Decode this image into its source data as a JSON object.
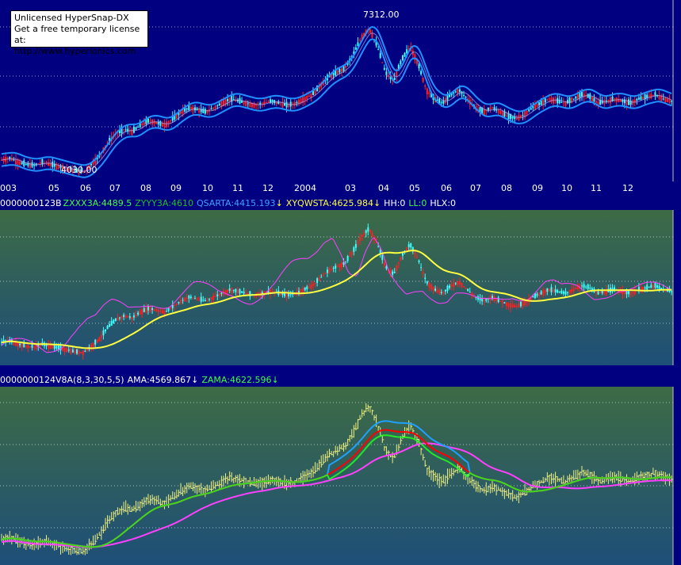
{
  "watermark": {
    "line1": "Unlicensed HyperSnap-DX",
    "line2": "Get a free temporary license at:",
    "line3": "http://www.hyperionics.com"
  },
  "top_panel": {
    "high_label": "7312.00",
    "low_label": "4030.00",
    "time_axis": [
      "003",
      "05",
      "06",
      "07",
      "08",
      "09",
      "10",
      "11",
      "12",
      "2004",
      "03",
      "04",
      "05",
      "06",
      "07",
      "08",
      "09",
      "10",
      "11",
      "12"
    ]
  },
  "mid_panel": {
    "header": {
      "id": "0000000123B",
      "zxxx": "ZXXX3A:4489.5",
      "zyyy": "ZYYY3A:4610",
      "qsarta": "QSARTA:4415.193",
      "xyqwsta": "XYQWSTA:4625.984",
      "hh": "HH:0",
      "ll": "LL:0",
      "hlx": "HLX:0"
    }
  },
  "bot_panel": {
    "header": {
      "id": "0000000124V8A(8,3,30,5,5)",
      "ama": "AMA:4569.867",
      "zama": "ZAMA:4622.596"
    }
  },
  "colors": {
    "window_bg": "#000080",
    "up_candle": "#ff2020",
    "down_candle": "#40ffff",
    "band": "#2090ff",
    "yellow_line": "#ffff40",
    "magenta_line": "#ff40ff",
    "red_line": "#ff0000",
    "green_line": "#20ff20",
    "blue_line": "#20a0ff"
  },
  "chart_data": [
    {
      "type": "line",
      "title": "",
      "series": [
        {
          "values": [
            4300,
            4350,
            4250,
            4200,
            4180,
            4250,
            4200,
            4150,
            4100,
            4050,
            4030,
            4200,
            4400,
            4700,
            4900,
            5000,
            4950,
            5100,
            5200,
            5150,
            5100,
            5250,
            5400,
            5500,
            5450,
            5400,
            5500,
            5600,
            5700,
            5650,
            5600,
            5550,
            5600,
            5650,
            5600,
            5550,
            5600,
            5700,
            5800,
            6000,
            6200,
            6300,
            6400,
            6700,
            7100,
            7312,
            6900,
            6300,
            6100,
            6600,
            6900,
            6500,
            5900,
            5700,
            5600,
            5800,
            5900,
            5700,
            5500,
            5400,
            5500,
            5400,
            5300,
            5250,
            5350,
            5500,
            5600,
            5700,
            5650,
            5600,
            5700,
            5800,
            5750,
            5600,
            5650,
            5700,
            5650,
            5600,
            5700,
            5750,
            5800,
            5700,
            5650
          ]
        }
      ]
    }
  ]
}
